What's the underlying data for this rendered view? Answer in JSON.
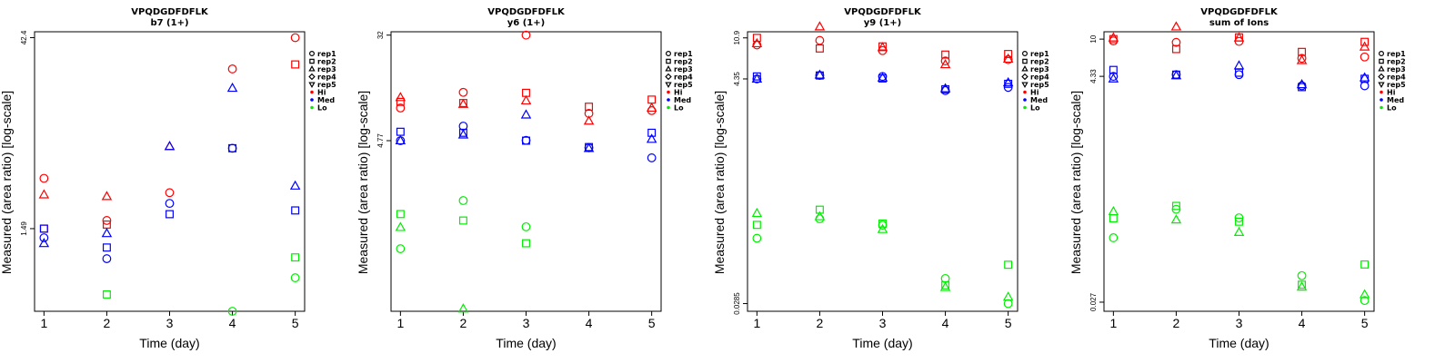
{
  "legend": {
    "shape_entries": [
      {
        "label": "rep1",
        "shape": "circle"
      },
      {
        "label": "rep2",
        "shape": "square"
      },
      {
        "label": "rep3",
        "shape": "triangle"
      },
      {
        "label": "rep4",
        "shape": "diamond"
      },
      {
        "label": "rep5",
        "shape": "triangle-down"
      }
    ],
    "color_entries": [
      {
        "label": "Hi",
        "color": "#ff0000"
      },
      {
        "label": "Med",
        "color": "#0000ff"
      },
      {
        "label": "Lo",
        "color": "#00ee00"
      }
    ],
    "placement": "right"
  },
  "chart_data": [
    {
      "type": "scatter",
      "title": "VPQDGDFDFLK",
      "subtitle": "b7 (1+)",
      "xlabel": "Time (day)",
      "ylabel": "Measured (area ratio) [log-scale]",
      "x_ticks": [
        "1",
        "2",
        "3",
        "4",
        "5"
      ],
      "y_ticks": [
        "1.49",
        "42.4"
      ],
      "y_scale": "log",
      "ylim": [
        0.35,
        47
      ],
      "xlim": [
        0.85,
        5.15
      ],
      "grid": false,
      "series": [
        {
          "rep": "rep1",
          "group": "Hi",
          "x": [
            1,
            2,
            3,
            4,
            5
          ],
          "y": [
            3.6,
            1.72,
            2.8,
            24.5,
            42.4
          ]
        },
        {
          "rep": "rep2",
          "group": "Hi",
          "x": [
            1,
            2,
            5
          ],
          "y": [
            1.49,
            1.6,
            26.5
          ]
        },
        {
          "rep": "rep3",
          "group": "Hi",
          "x": [
            1,
            2,
            3
          ],
          "y": [
            2.7,
            2.62,
            6.3
          ]
        },
        {
          "rep": "rep1",
          "group": "Med",
          "x": [
            1,
            2,
            3,
            4
          ],
          "y": [
            1.27,
            0.88,
            2.32,
            6.1
          ]
        },
        {
          "rep": "rep2",
          "group": "Med",
          "x": [
            1,
            2,
            3,
            4,
            5
          ],
          "y": [
            1.49,
            1.07,
            1.92,
            6.1,
            2.05
          ]
        },
        {
          "rep": "rep3",
          "group": "Med",
          "x": [
            1,
            2,
            3,
            4,
            5
          ],
          "y": [
            1.15,
            1.37,
            6.3,
            17.5,
            3.15
          ]
        },
        {
          "rep": "rep1",
          "group": "Lo",
          "x": [
            4,
            5
          ],
          "y": [
            0.35,
            0.63
          ]
        },
        {
          "rep": "rep2",
          "group": "Lo",
          "x": [
            2,
            5
          ],
          "y": [
            0.47,
            0.9
          ]
        }
      ]
    },
    {
      "type": "scatter",
      "title": "VPQDGDFDFLK",
      "subtitle": "y6 (1+)",
      "xlabel": "Time (day)",
      "ylabel": "Measured (area ratio) [log-scale]",
      "x_ticks": [
        "1",
        "2",
        "3",
        "4",
        "5"
      ],
      "y_ticks": [
        "4.77",
        "32"
      ],
      "y_scale": "log",
      "ylim": [
        0.22,
        34
      ],
      "xlim": [
        0.85,
        5.15
      ],
      "grid": false,
      "series": [
        {
          "rep": "rep1",
          "group": "Hi",
          "x": [
            1,
            2,
            3,
            4,
            5
          ],
          "y": [
            8.6,
            11.4,
            32,
            7.8,
            8.2
          ]
        },
        {
          "rep": "rep2",
          "group": "Hi",
          "x": [
            1,
            2,
            3,
            4,
            5
          ],
          "y": [
            9.6,
            9.4,
            11.3,
            8.8,
            10.0
          ]
        },
        {
          "rep": "rep3",
          "group": "Hi",
          "x": [
            1,
            2,
            3,
            4,
            5
          ],
          "y": [
            10.4,
            9.2,
            9.8,
            6.8,
            8.6
          ]
        },
        {
          "rep": "rep1",
          "group": "Med",
          "x": [
            1,
            2,
            3,
            4,
            5
          ],
          "y": [
            4.77,
            6.2,
            4.8,
            4.2,
            3.5
          ]
        },
        {
          "rep": "rep2",
          "group": "Med",
          "x": [
            1,
            2,
            3,
            4,
            5
          ],
          "y": [
            5.6,
            5.5,
            4.77,
            4.25,
            5.5
          ]
        },
        {
          "rep": "rep3",
          "group": "Med",
          "x": [
            1,
            2,
            3,
            4,
            5
          ],
          "y": [
            4.77,
            5.3,
            7.6,
            4.15,
            4.9
          ]
        },
        {
          "rep": "rep1",
          "group": "Lo",
          "x": [
            1,
            2,
            3
          ],
          "y": [
            0.68,
            1.62,
            1.01
          ]
        },
        {
          "rep": "rep2",
          "group": "Lo",
          "x": [
            1,
            2,
            3
          ],
          "y": [
            1.27,
            1.13,
            0.75
          ]
        },
        {
          "rep": "rep3",
          "group": "Lo",
          "x": [
            1,
            2
          ],
          "y": [
            1.0,
            0.23
          ]
        }
      ]
    },
    {
      "type": "scatter",
      "title": "VPQDGDFDFLK",
      "subtitle": "y9 (1+)",
      "xlabel": "Time (day)",
      "ylabel": "Measured (area ratio) [log-scale]",
      "x_ticks": [
        "1",
        "2",
        "3",
        "4",
        "5"
      ],
      "y_ticks": [
        "0.0285",
        "4.35",
        "10.9"
      ],
      "y_scale": "log",
      "ylim": [
        0.024,
        12.5
      ],
      "xlim": [
        0.85,
        5.15
      ],
      "grid": false,
      "series": [
        {
          "rep": "rep1",
          "group": "Hi",
          "x": [
            1,
            2,
            3,
            4,
            5
          ],
          "y": [
            9.3,
            10.3,
            8.2,
            6.5,
            6.7
          ]
        },
        {
          "rep": "rep2",
          "group": "Hi",
          "x": [
            1,
            2,
            3,
            4,
            5
          ],
          "y": [
            10.9,
            8.6,
            9.0,
            7.5,
            7.6
          ]
        },
        {
          "rep": "rep3",
          "group": "Hi",
          "x": [
            1,
            2,
            3,
            4,
            5
          ],
          "y": [
            9.6,
            14.0,
            8.8,
            6.0,
            6.8
          ]
        },
        {
          "rep": "rep1",
          "group": "Med",
          "x": [
            1,
            2,
            3,
            4,
            5
          ],
          "y": [
            4.35,
            4.7,
            4.6,
            3.35,
            3.6
          ]
        },
        {
          "rep": "rep2",
          "group": "Med",
          "x": [
            1,
            2,
            3,
            4,
            5
          ],
          "y": [
            4.6,
            4.7,
            4.4,
            3.45,
            3.9
          ]
        },
        {
          "rep": "rep3",
          "group": "Med",
          "x": [
            1,
            2,
            3,
            4,
            5
          ],
          "y": [
            4.35,
            4.75,
            4.45,
            3.5,
            4.0
          ]
        },
        {
          "rep": "rep1",
          "group": "Lo",
          "x": [
            1,
            2,
            3,
            4,
            5
          ],
          "y": [
            0.123,
            0.19,
            0.165,
            0.05,
            0.0285
          ]
        },
        {
          "rep": "rep2",
          "group": "Lo",
          "x": [
            1,
            2,
            3,
            4,
            5
          ],
          "y": [
            0.166,
            0.233,
            0.171,
            0.043,
            0.068
          ]
        },
        {
          "rep": "rep3",
          "group": "Lo",
          "x": [
            1,
            2,
            3,
            4,
            5
          ],
          "y": [
            0.215,
            0.2,
            0.15,
            0.041,
            0.033
          ]
        }
      ]
    },
    {
      "type": "scatter",
      "title": "VPQDGDFDFLK",
      "subtitle": "sum of Ions",
      "xlabel": "Time (day)",
      "ylabel": "Measured (area ratio) [log-scale]",
      "x_ticks": [
        "1",
        "2",
        "3",
        "4",
        "5"
      ],
      "y_ticks": [
        "0.027",
        "4.33",
        "10"
      ],
      "y_scale": "log",
      "ylim": [
        0.022,
        11.8
      ],
      "xlim": [
        0.85,
        5.15
      ],
      "grid": false,
      "series": [
        {
          "rep": "rep1",
          "group": "Hi",
          "x": [
            1,
            2,
            3,
            4,
            5
          ],
          "y": [
            9.6,
            9.3,
            9.5,
            6.5,
            6.7
          ]
        },
        {
          "rep": "rep2",
          "group": "Hi",
          "x": [
            1,
            2,
            3,
            4,
            5
          ],
          "y": [
            10,
            8.0,
            10.4,
            7.5,
            9.4
          ]
        },
        {
          "rep": "rep3",
          "group": "Hi",
          "x": [
            1,
            2,
            3,
            4,
            5
          ],
          "y": [
            10.3,
            13.2,
            10.3,
            6.2,
            8.4
          ]
        },
        {
          "rep": "rep1",
          "group": "Med",
          "x": [
            1,
            2,
            3,
            4,
            5
          ],
          "y": [
            4.33,
            4.5,
            4.5,
            3.5,
            3.5
          ]
        },
        {
          "rep": "rep2",
          "group": "Med",
          "x": [
            1,
            2,
            3,
            4,
            5
          ],
          "y": [
            5.0,
            4.5,
            4.7,
            3.4,
            4.1
          ]
        },
        {
          "rep": "rep3",
          "group": "Med",
          "x": [
            1,
            2,
            3,
            4,
            5
          ],
          "y": [
            4.1,
            4.4,
            5.5,
            3.6,
            4.2
          ]
        },
        {
          "rep": "rep1",
          "group": "Lo",
          "x": [
            1,
            2,
            3,
            4,
            5
          ],
          "y": [
            0.115,
            0.218,
            0.18,
            0.049,
            0.028
          ]
        },
        {
          "rep": "rep2",
          "group": "Lo",
          "x": [
            1,
            2,
            3,
            4,
            5
          ],
          "y": [
            0.178,
            0.235,
            0.165,
            0.04,
            0.063
          ]
        },
        {
          "rep": "rep3",
          "group": "Lo",
          "x": [
            1,
            2,
            3,
            4,
            5
          ],
          "y": [
            0.207,
            0.172,
            0.13,
            0.038,
            0.032
          ]
        }
      ]
    }
  ]
}
